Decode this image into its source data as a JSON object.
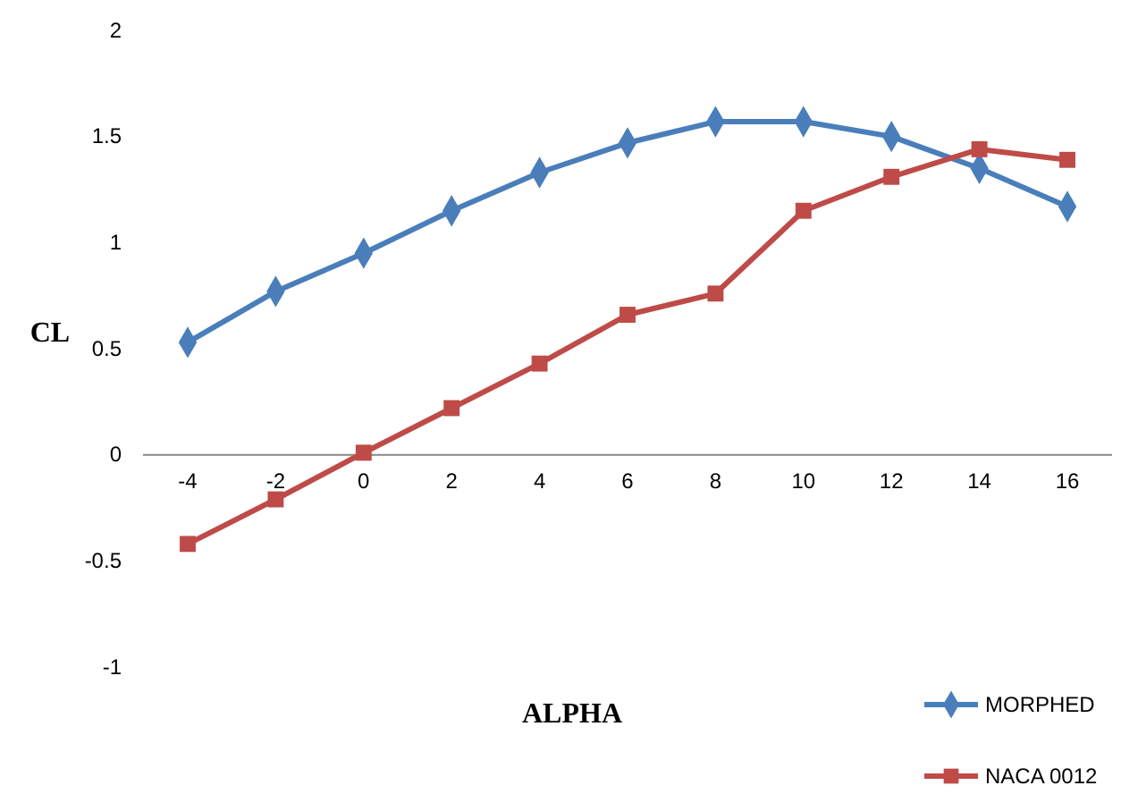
{
  "chart_data": {
    "type": "line",
    "xlabel": "ALPHA",
    "ylabel": "CL",
    "categories": [
      "-4",
      "-2",
      "0",
      "2",
      "4",
      "6",
      "8",
      "10",
      "12",
      "14",
      "16"
    ],
    "series": [
      {
        "name": "MORPHED",
        "color": "#4a7ebb",
        "marker": "diamond",
        "values": [
          0.53,
          0.77,
          0.95,
          1.15,
          1.33,
          1.47,
          1.57,
          1.57,
          1.5,
          1.35,
          1.17
        ]
      },
      {
        "name": "NACA 0012",
        "color": "#be4b48",
        "marker": "square",
        "values": [
          -0.42,
          -0.21,
          0.01,
          0.22,
          0.43,
          0.66,
          0.76,
          1.15,
          1.31,
          1.44,
          1.39
        ]
      }
    ],
    "ylim": [
      -1,
      2
    ],
    "yticks": [
      -1,
      -0.5,
      0,
      0.5,
      1,
      1.5,
      2
    ],
    "grid": false,
    "legend": "bottom right"
  }
}
